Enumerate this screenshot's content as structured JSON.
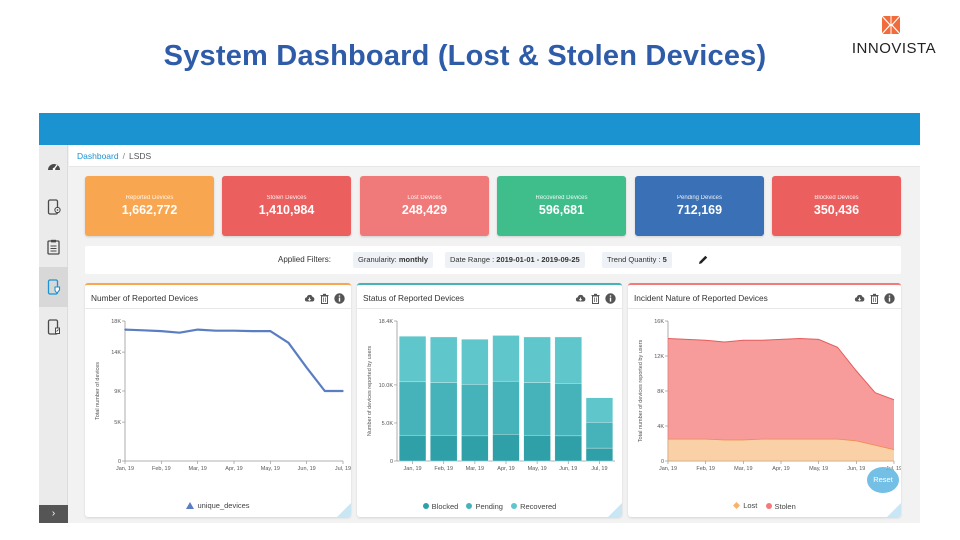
{
  "slide": {
    "title": "System Dashboard (Lost & Stolen Devices)",
    "logo_text": "INNOVISTA"
  },
  "breadcrumb": {
    "home": "Dashboard",
    "separator": "/",
    "current": "LSDS"
  },
  "sidebar": {
    "items": [
      {
        "icon": "speedometer-icon"
      },
      {
        "icon": "device-settings-icon"
      },
      {
        "icon": "clipboard-icon"
      },
      {
        "icon": "device-shield-icon",
        "active": true
      },
      {
        "icon": "device-report-icon"
      }
    ],
    "toggle": "›"
  },
  "stats": [
    {
      "label": "Reported Devices",
      "value": "1,662,772",
      "color": "#f9a650"
    },
    {
      "label": "Stolen Devices",
      "value": "1,410,984",
      "color": "#eb5f5f"
    },
    {
      "label": "Lost Devices",
      "value": "248,429",
      "color": "#f07a7a"
    },
    {
      "label": "Recovered Devices",
      "value": "596,681",
      "color": "#3fbe8c"
    },
    {
      "label": "Pending Devices",
      "value": "712,169",
      "color": "#3a70b5"
    },
    {
      "label": "Blocked Devices",
      "value": "350,436",
      "color": "#eb5f5f"
    }
  ],
  "filters": {
    "title": "Applied Filters:",
    "granularity_label": "Granularity:",
    "granularity_value": "monthly",
    "range_label": "Date Range :",
    "range_value": "2019-01-01 - 2019-09-25",
    "trend_label": "Trend Quantity :",
    "trend_value": "5"
  },
  "chart_data": [
    {
      "type": "line",
      "title": "Number of Reported Devices",
      "ylabel": "Total number of devices",
      "categories": [
        "Jan, 19",
        "Feb, 19",
        "Mar, 19",
        "Apr, 19",
        "May, 19",
        "Jun, 19",
        "Jul, 19"
      ],
      "x": [
        0,
        0.5,
        1,
        1.5,
        2,
        2.5,
        3,
        3.5,
        4,
        4.5,
        5,
        5.5,
        6
      ],
      "series": [
        {
          "name": "unique_devices",
          "color": "#5b7ec2",
          "values": [
            16900,
            16800,
            16700,
            16500,
            16900,
            16750,
            16750,
            16700,
            16700,
            15200,
            12000,
            9000,
            9000
          ]
        }
      ],
      "yticks": [
        0,
        5000,
        9000,
        14000,
        18000
      ],
      "yticklabels": [
        "0",
        "5K",
        "9K",
        "14K",
        "18K"
      ],
      "ylim": [
        0,
        18000
      ]
    },
    {
      "type": "bar",
      "stacked": true,
      "title": "Status of Reported Devices",
      "ylabel": "Number of devices reported by users",
      "categories": [
        "Jan, 19",
        "Feb, 19",
        "Mar, 19",
        "Apr, 19",
        "May, 19",
        "Jun, 19",
        "Jul, 19"
      ],
      "series": [
        {
          "name": "Blocked",
          "color": "#2f9fa8",
          "values": [
            3400,
            3400,
            3300,
            3500,
            3400,
            3300,
            1700
          ]
        },
        {
          "name": "Pending",
          "color": "#45b3b9",
          "values": [
            7000,
            6900,
            6800,
            7000,
            6900,
            6900,
            3400
          ]
        },
        {
          "name": "Recovered",
          "color": "#5fc6cb",
          "values": [
            6000,
            6000,
            5900,
            6000,
            6000,
            6100,
            3200
          ]
        }
      ],
      "yticks": [
        0,
        5000,
        10000,
        18400
      ],
      "yticklabels": [
        "0",
        "5.0K",
        "10.0K",
        "18.4K"
      ],
      "ylim": [
        0,
        18400
      ]
    },
    {
      "type": "area",
      "stacked": true,
      "title": "Incident Nature of Reported Devices",
      "ylabel": "Total number of devices reported by users",
      "categories": [
        "Jan, 19",
        "Feb, 19",
        "Mar, 19",
        "Apr, 19",
        "May, 19",
        "Jun, 19",
        "Jul, 19"
      ],
      "x": [
        0,
        0.5,
        1,
        1.5,
        2,
        2.5,
        3,
        3.5,
        4,
        4.5,
        5,
        5.5,
        6
      ],
      "series": [
        {
          "name": "Lost",
          "color": "#f7b26d",
          "values": [
            2500,
            2500,
            2500,
            2400,
            2400,
            2500,
            2500,
            2500,
            2500,
            2500,
            2300,
            1800,
            1300
          ]
        },
        {
          "name": "Stolen",
          "color": "#f47a7a",
          "values": [
            11500,
            11400,
            11300,
            11200,
            11400,
            11300,
            11400,
            11500,
            11400,
            10500,
            8000,
            6000,
            5700
          ]
        }
      ],
      "yticks": [
        0,
        4000,
        8000,
        12000,
        16000
      ],
      "yticklabels": [
        "0",
        "4K",
        "8K",
        "12K",
        "16K"
      ],
      "ylim": [
        0,
        16000
      ]
    }
  ],
  "reset_label": "Reset"
}
